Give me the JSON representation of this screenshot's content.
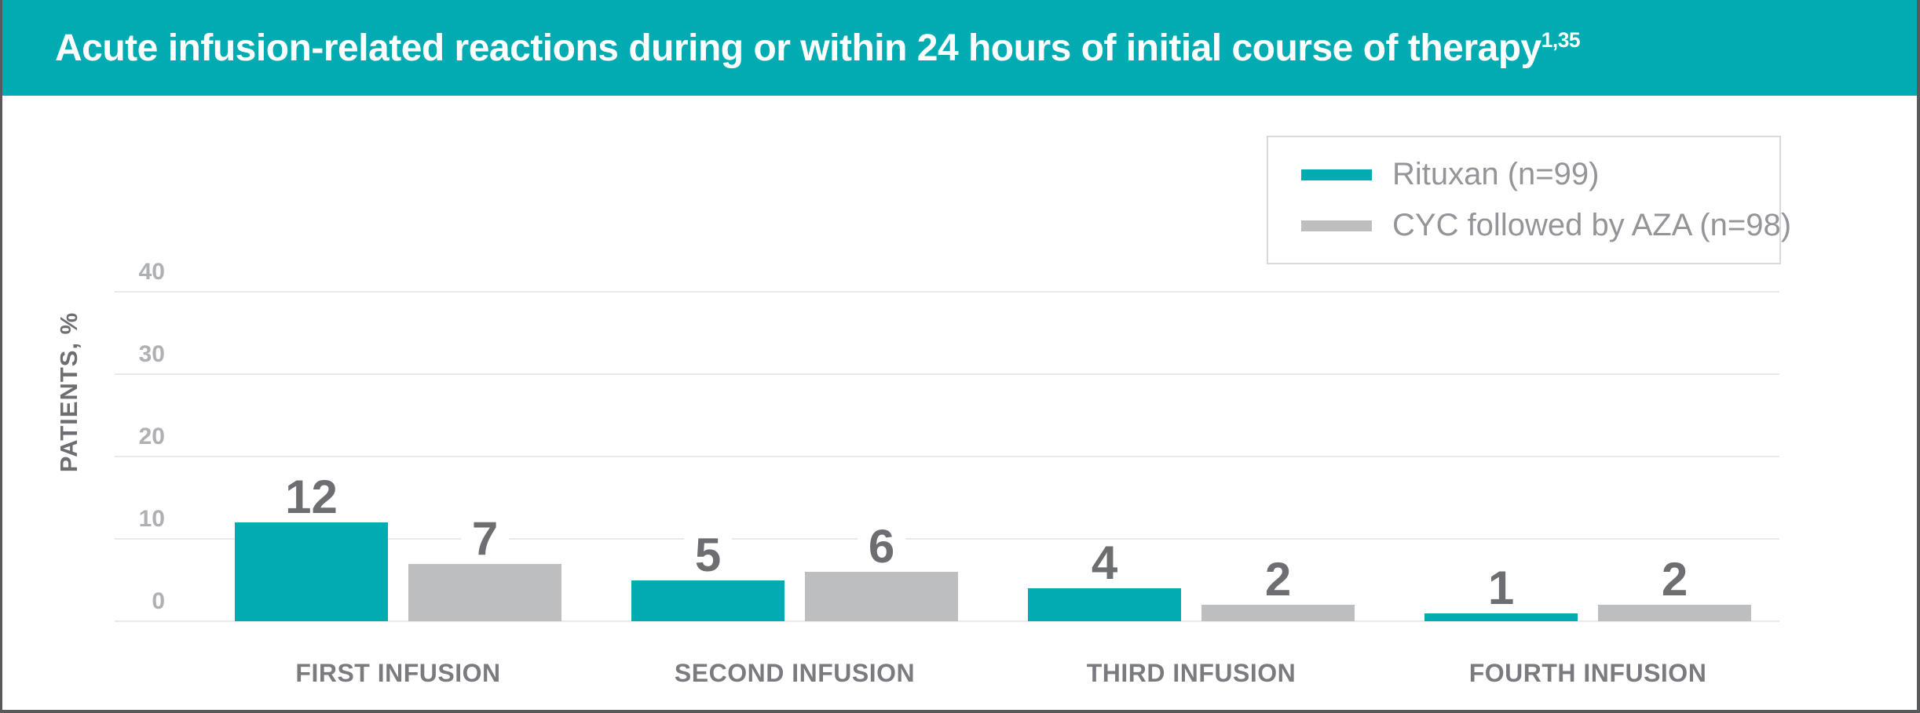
{
  "header": {
    "title": "Acute infusion-related reactions during or within 24 hours of initial course of therapy",
    "title_superscript": "1,35"
  },
  "legend": {
    "items": [
      {
        "label": "Rituxan (n=99)"
      },
      {
        "label": "CYC followed by AZA (n=98)"
      }
    ]
  },
  "chart_data": {
    "type": "bar",
    "title": "Acute infusion-related reactions during or within 24 hours of initial course of therapy",
    "categories": [
      "FIRST INFUSION",
      "SECOND INFUSION",
      "THIRD INFUSION",
      "FOURTH INFUSION"
    ],
    "series": [
      {
        "name": "Rituxan (n=99)",
        "color": "#00acb2",
        "values": [
          12,
          5,
          4,
          1
        ]
      },
      {
        "name": "CYC followed by AZA (n=98)",
        "color": "#bcbec0",
        "values": [
          7,
          6,
          2,
          2
        ]
      }
    ],
    "ylabel": "PATIENTS, %",
    "xlabel": "",
    "yticks": [
      0,
      10,
      20,
      30,
      40
    ],
    "ylim": [
      0,
      40
    ],
    "grid": true,
    "legend_position": "top-right",
    "bar_value_labels": [
      [
        12,
        7
      ],
      [
        5,
        6
      ],
      [
        4,
        2
      ],
      [
        1,
        2
      ]
    ]
  },
  "colors": {
    "header_background": "#00acb2",
    "header_text": "#ffffff",
    "teal_bar": "#00acb2",
    "gray_bar": "#bcbec0",
    "value_label_text": "#6d6e71",
    "category_label_text": "#7a7b7e",
    "tick_label_text": "#aeb0b3",
    "gridline": "#e8e9ea",
    "legend_border": "#d9dadb",
    "legend_text": "#939598",
    "frame_border": "#58595b"
  }
}
